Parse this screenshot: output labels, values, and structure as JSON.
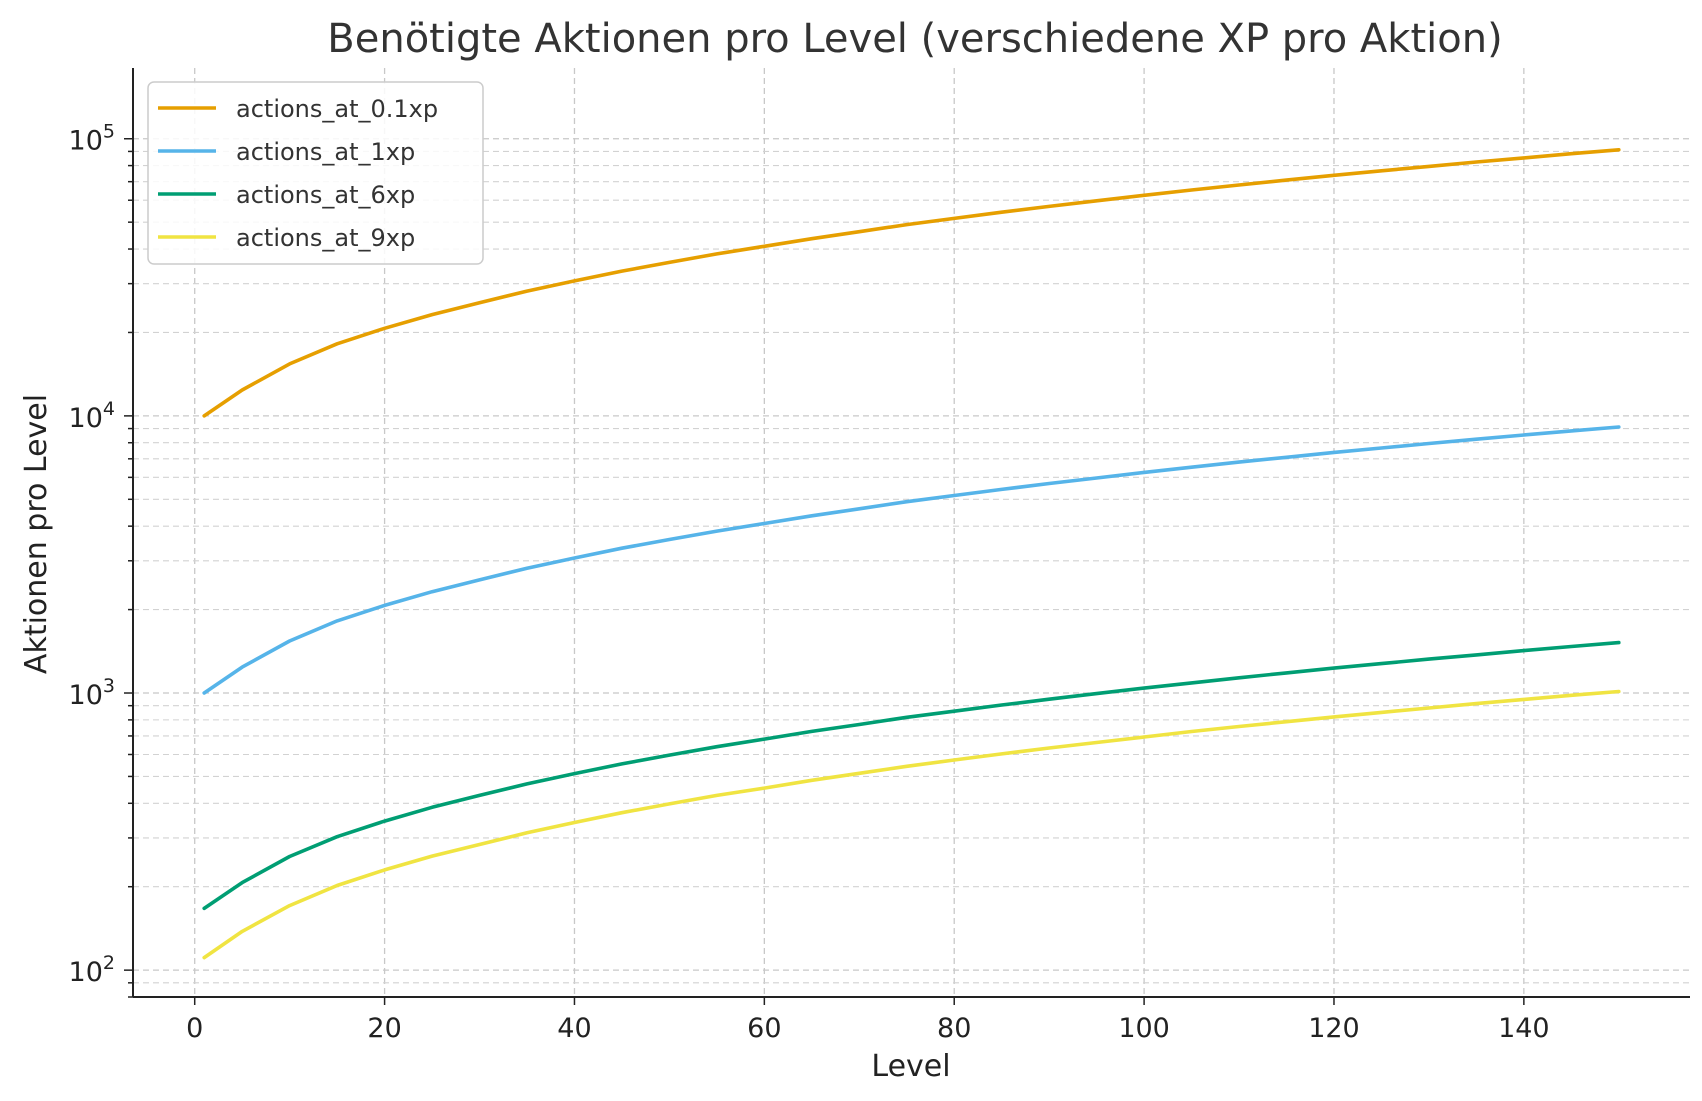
{
  "chart_data": {
    "type": "line",
    "title": "Benötigte Aktionen pro Level (verschiedene XP pro Aktion)",
    "xlabel": "Level",
    "ylabel": "Aktionen pro Level",
    "xlim": [
      -6.5,
      157.5
    ],
    "ylim": [
      80,
      180000
    ],
    "yscale": "log",
    "grid": true,
    "legend": "top-left",
    "x_ticks": [
      0,
      20,
      40,
      60,
      80,
      100,
      120,
      140
    ],
    "y_ticks": [
      {
        "value": 100,
        "base": "10",
        "exp": "2"
      },
      {
        "value": 1000,
        "base": "10",
        "exp": "3"
      },
      {
        "value": 10000,
        "base": "10",
        "exp": "4"
      },
      {
        "value": 100000,
        "base": "10",
        "exp": "5"
      }
    ],
    "x": [
      1,
      5,
      10,
      15,
      20,
      25,
      30,
      35,
      40,
      45,
      50,
      55,
      60,
      65,
      70,
      75,
      80,
      85,
      90,
      95,
      100,
      105,
      110,
      115,
      120,
      125,
      130,
      135,
      140,
      145,
      150
    ],
    "series": [
      {
        "name": "actions_at_0.1xp",
        "color": "#E69F00",
        "values": [
          10000,
          12400,
          15400,
          18200,
          20700,
          23200,
          25600,
          28200,
          30700,
          33300,
          35800,
          38400,
          40900,
          43600,
          46200,
          49000,
          51600,
          54300,
          57000,
          59700,
          62500,
          65300,
          68100,
          70900,
          73800,
          76600,
          79500,
          82400,
          85300,
          88300,
          91200
        ]
      },
      {
        "name": "actions_at_1xp",
        "color": "#56B4E9",
        "values": [
          1000,
          1240,
          1540,
          1820,
          2070,
          2320,
          2560,
          2820,
          3070,
          3330,
          3580,
          3840,
          4090,
          4360,
          4620,
          4900,
          5160,
          5430,
          5700,
          5970,
          6250,
          6530,
          6810,
          7090,
          7380,
          7660,
          7950,
          8240,
          8530,
          8830,
          9120
        ]
      },
      {
        "name": "actions_at_6xp",
        "color": "#009E73",
        "values": [
          167,
          207,
          257,
          303,
          345,
          387,
          427,
          470,
          512,
          555,
          597,
          640,
          682,
          727,
          770,
          817,
          860,
          905,
          950,
          995,
          1042,
          1088,
          1135,
          1182,
          1230,
          1277,
          1325,
          1373,
          1422,
          1472,
          1520
        ]
      },
      {
        "name": "actions_at_9xp",
        "color": "#F0E442",
        "values": [
          111,
          138,
          171,
          202,
          230,
          258,
          284,
          313,
          341,
          370,
          398,
          427,
          454,
          484,
          513,
          544,
          573,
          603,
          633,
          663,
          694,
          726,
          757,
          788,
          820,
          851,
          883,
          916,
          948,
          981,
          1013
        ]
      }
    ]
  }
}
